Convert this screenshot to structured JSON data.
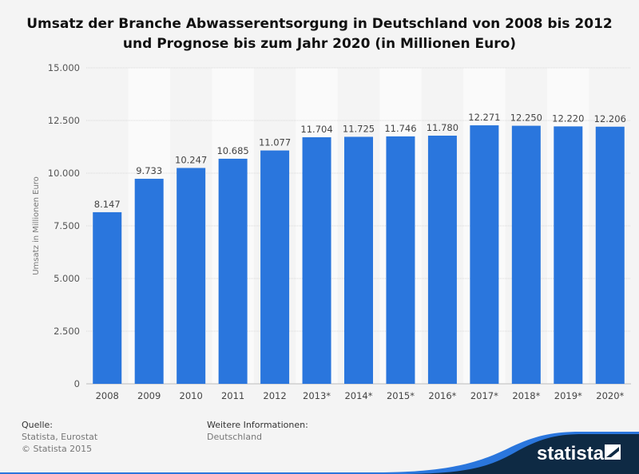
{
  "title_line1": "Umsatz der Branche Abwasserentsorgung in Deutschland von 2008 bis 2012",
  "title_line2": "und Prognose bis zum Jahr 2020 (in Millionen Euro)",
  "footer": {
    "source_label": "Quelle:",
    "source": "Statista, Eurostat",
    "copyright": "© Statista 2015",
    "info_label": "Weitere Informationen:",
    "info": "Deutschland",
    "logo": "statista"
  },
  "colors": {
    "bar": "#2a76dd",
    "background": "#f4f4f4",
    "footer_dark": "#0e2a44"
  },
  "chart_data": {
    "type": "bar",
    "title": "Umsatz der Branche Abwasserentsorgung in Deutschland von 2008 bis 2012 und Prognose bis zum Jahr 2020 (in Millionen Euro)",
    "categories": [
      "2008",
      "2009",
      "2010",
      "2011",
      "2012",
      "2013*",
      "2014*",
      "2015*",
      "2016*",
      "2017*",
      "2018*",
      "2019*",
      "2020*"
    ],
    "values": [
      8147,
      9733,
      10247,
      10685,
      11077,
      11704,
      11725,
      11746,
      11780,
      12271,
      12250,
      12220,
      12206
    ],
    "value_labels": [
      "8.147",
      "9.733",
      "10.247",
      "10.685",
      "11.077",
      "11.704",
      "11.725",
      "11.746",
      "11.780",
      "12.271",
      "12.250",
      "12.220",
      "12.206"
    ],
    "ylabel": "Umsatz in Millionen Euro",
    "xlabel": "",
    "ylim": [
      0,
      15000
    ],
    "yticks": [
      0,
      2500,
      5000,
      7500,
      10000,
      12500,
      15000
    ],
    "ytick_labels": [
      "0",
      "2.500",
      "5.000",
      "7.500",
      "10.000",
      "12.500",
      "15.000"
    ],
    "grid": true,
    "legend": "none"
  }
}
